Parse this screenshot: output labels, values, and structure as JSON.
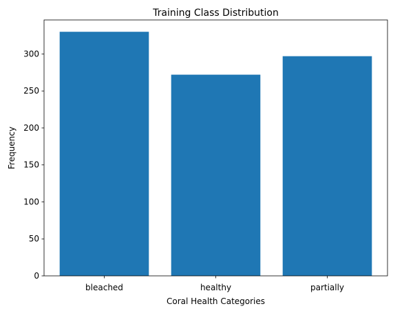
{
  "chart_data": {
    "type": "bar",
    "title": "Training Class Distribution",
    "xlabel": "Coral Health Categories",
    "ylabel": "Frequency",
    "categories": [
      "bleached",
      "healthy",
      "partially"
    ],
    "values": [
      330,
      272,
      297
    ],
    "ylim": [
      0,
      346
    ],
    "yticks": [
      0,
      50,
      100,
      150,
      200,
      250,
      300
    ],
    "grid": false,
    "bar_color": "#1f77b4"
  }
}
